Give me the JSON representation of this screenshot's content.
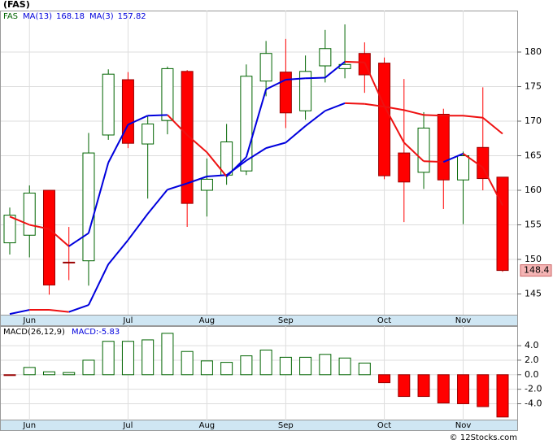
{
  "chart_data": [
    {
      "type": "candlestick",
      "title": "(FAS)",
      "name": "FAS",
      "categories": [
        null,
        "Jun",
        null,
        null,
        null,
        null,
        "Jul",
        null,
        null,
        null,
        "Aug",
        null,
        null,
        null,
        "Sep",
        null,
        null,
        null,
        null,
        "Oct",
        null,
        null,
        null,
        "Nov",
        null,
        null
      ],
      "open": [
        152.4,
        153.5,
        160.0,
        149.6,
        149.8,
        168.0,
        176.0,
        166.7,
        170.1,
        177.2,
        160.0,
        162.2,
        162.8,
        175.8,
        177.1,
        171.5,
        178.0,
        177.6,
        179.8,
        178.4,
        165.4,
        162.6,
        171.0,
        161.5,
        166.2,
        161.9
      ],
      "high": [
        157.5,
        160.7,
        160.0,
        154.7,
        168.3,
        177.5,
        177.1,
        170.7,
        177.9,
        177.4,
        164.6,
        169.6,
        178.2,
        181.6,
        181.9,
        179.5,
        183.2,
        184.0,
        181.4,
        179.2,
        176.1,
        171.3,
        171.8,
        165.6,
        174.9,
        161.9
      ],
      "low": [
        150.7,
        150.3,
        144.9,
        147.0,
        146.2,
        167.3,
        166.1,
        158.8,
        168.1,
        154.7,
        156.2,
        160.8,
        162.2,
        173.6,
        169.0,
        170.2,
        175.6,
        176.2,
        174.1,
        161.6,
        155.4,
        160.2,
        157.3,
        155.1,
        160.0,
        148.2
      ],
      "close": [
        156.4,
        159.6,
        146.3,
        149.6,
        165.4,
        176.8,
        166.8,
        169.6,
        177.6,
        158.1,
        161.6,
        167.0,
        176.5,
        179.8,
        171.2,
        177.2,
        180.5,
        178.2,
        176.7,
        162.1,
        161.2,
        169.0,
        161.5,
        165.0,
        161.7,
        148.4
      ],
      "up_color": "#006400",
      "down_color": "#ff0000",
      "series": [
        {
          "name": "MA(13)",
          "values": [
            142.1,
            142.7,
            142.7,
            142.4,
            143.4,
            149.3,
            152.8,
            156.6,
            160.1,
            161.0,
            162.0,
            162.2,
            164.3,
            166.1,
            166.9,
            169.3,
            171.5,
            172.6,
            172.5,
            172.1,
            171.6,
            170.9,
            170.8,
            170.8,
            170.5,
            168.18
          ]
        },
        {
          "name": "MA(3)",
          "values": [
            156.2,
            155.0,
            154.4,
            151.9,
            153.8,
            164.0,
            169.5,
            170.8,
            170.9,
            168.0,
            165.5,
            162.0,
            164.8,
            174.6,
            176.0,
            176.2,
            176.3,
            178.6,
            178.5,
            172.2,
            166.9,
            164.2,
            164.1,
            165.3,
            163.3,
            157.82
          ]
        }
      ],
      "line_up_color": "#0000dd",
      "line_down_color": "#ee1111",
      "ylim": [
        142,
        186
      ],
      "yticks": [
        145,
        150,
        155,
        160,
        165,
        170,
        175,
        180
      ],
      "grid": true
    },
    {
      "type": "bar",
      "name": "MACD(26,12,9)",
      "value_name": "MACD:",
      "categories": [
        null,
        "Jun",
        null,
        null,
        null,
        null,
        "Jul",
        null,
        null,
        null,
        "Aug",
        null,
        null,
        null,
        "Sep",
        null,
        null,
        null,
        null,
        "Oct",
        null,
        null,
        null,
        "Nov",
        null,
        null
      ],
      "values": [
        -0.1,
        1.0,
        0.4,
        0.3,
        2.0,
        4.6,
        4.6,
        4.8,
        5.7,
        3.2,
        1.9,
        1.7,
        2.6,
        3.4,
        2.4,
        2.4,
        2.8,
        2.3,
        1.6,
        -1.1,
        -3.0,
        -3.0,
        -3.9,
        -4.0,
        -4.4,
        -5.83
      ],
      "pos_color": "#006400",
      "neg_color": "#ff0000",
      "ylim": [
        -6.3,
        6.7
      ],
      "yticks": [
        {
          "value": -4,
          "label": "-4.0"
        },
        {
          "value": -2,
          "label": "-2.0"
        },
        {
          "value": 0,
          "label": "0.0"
        },
        {
          "value": 2,
          "label": "2.0"
        },
        {
          "value": 4,
          "label": "4.0"
        }
      ],
      "grid": true
    }
  ],
  "source": "© 12Stocks.com"
}
